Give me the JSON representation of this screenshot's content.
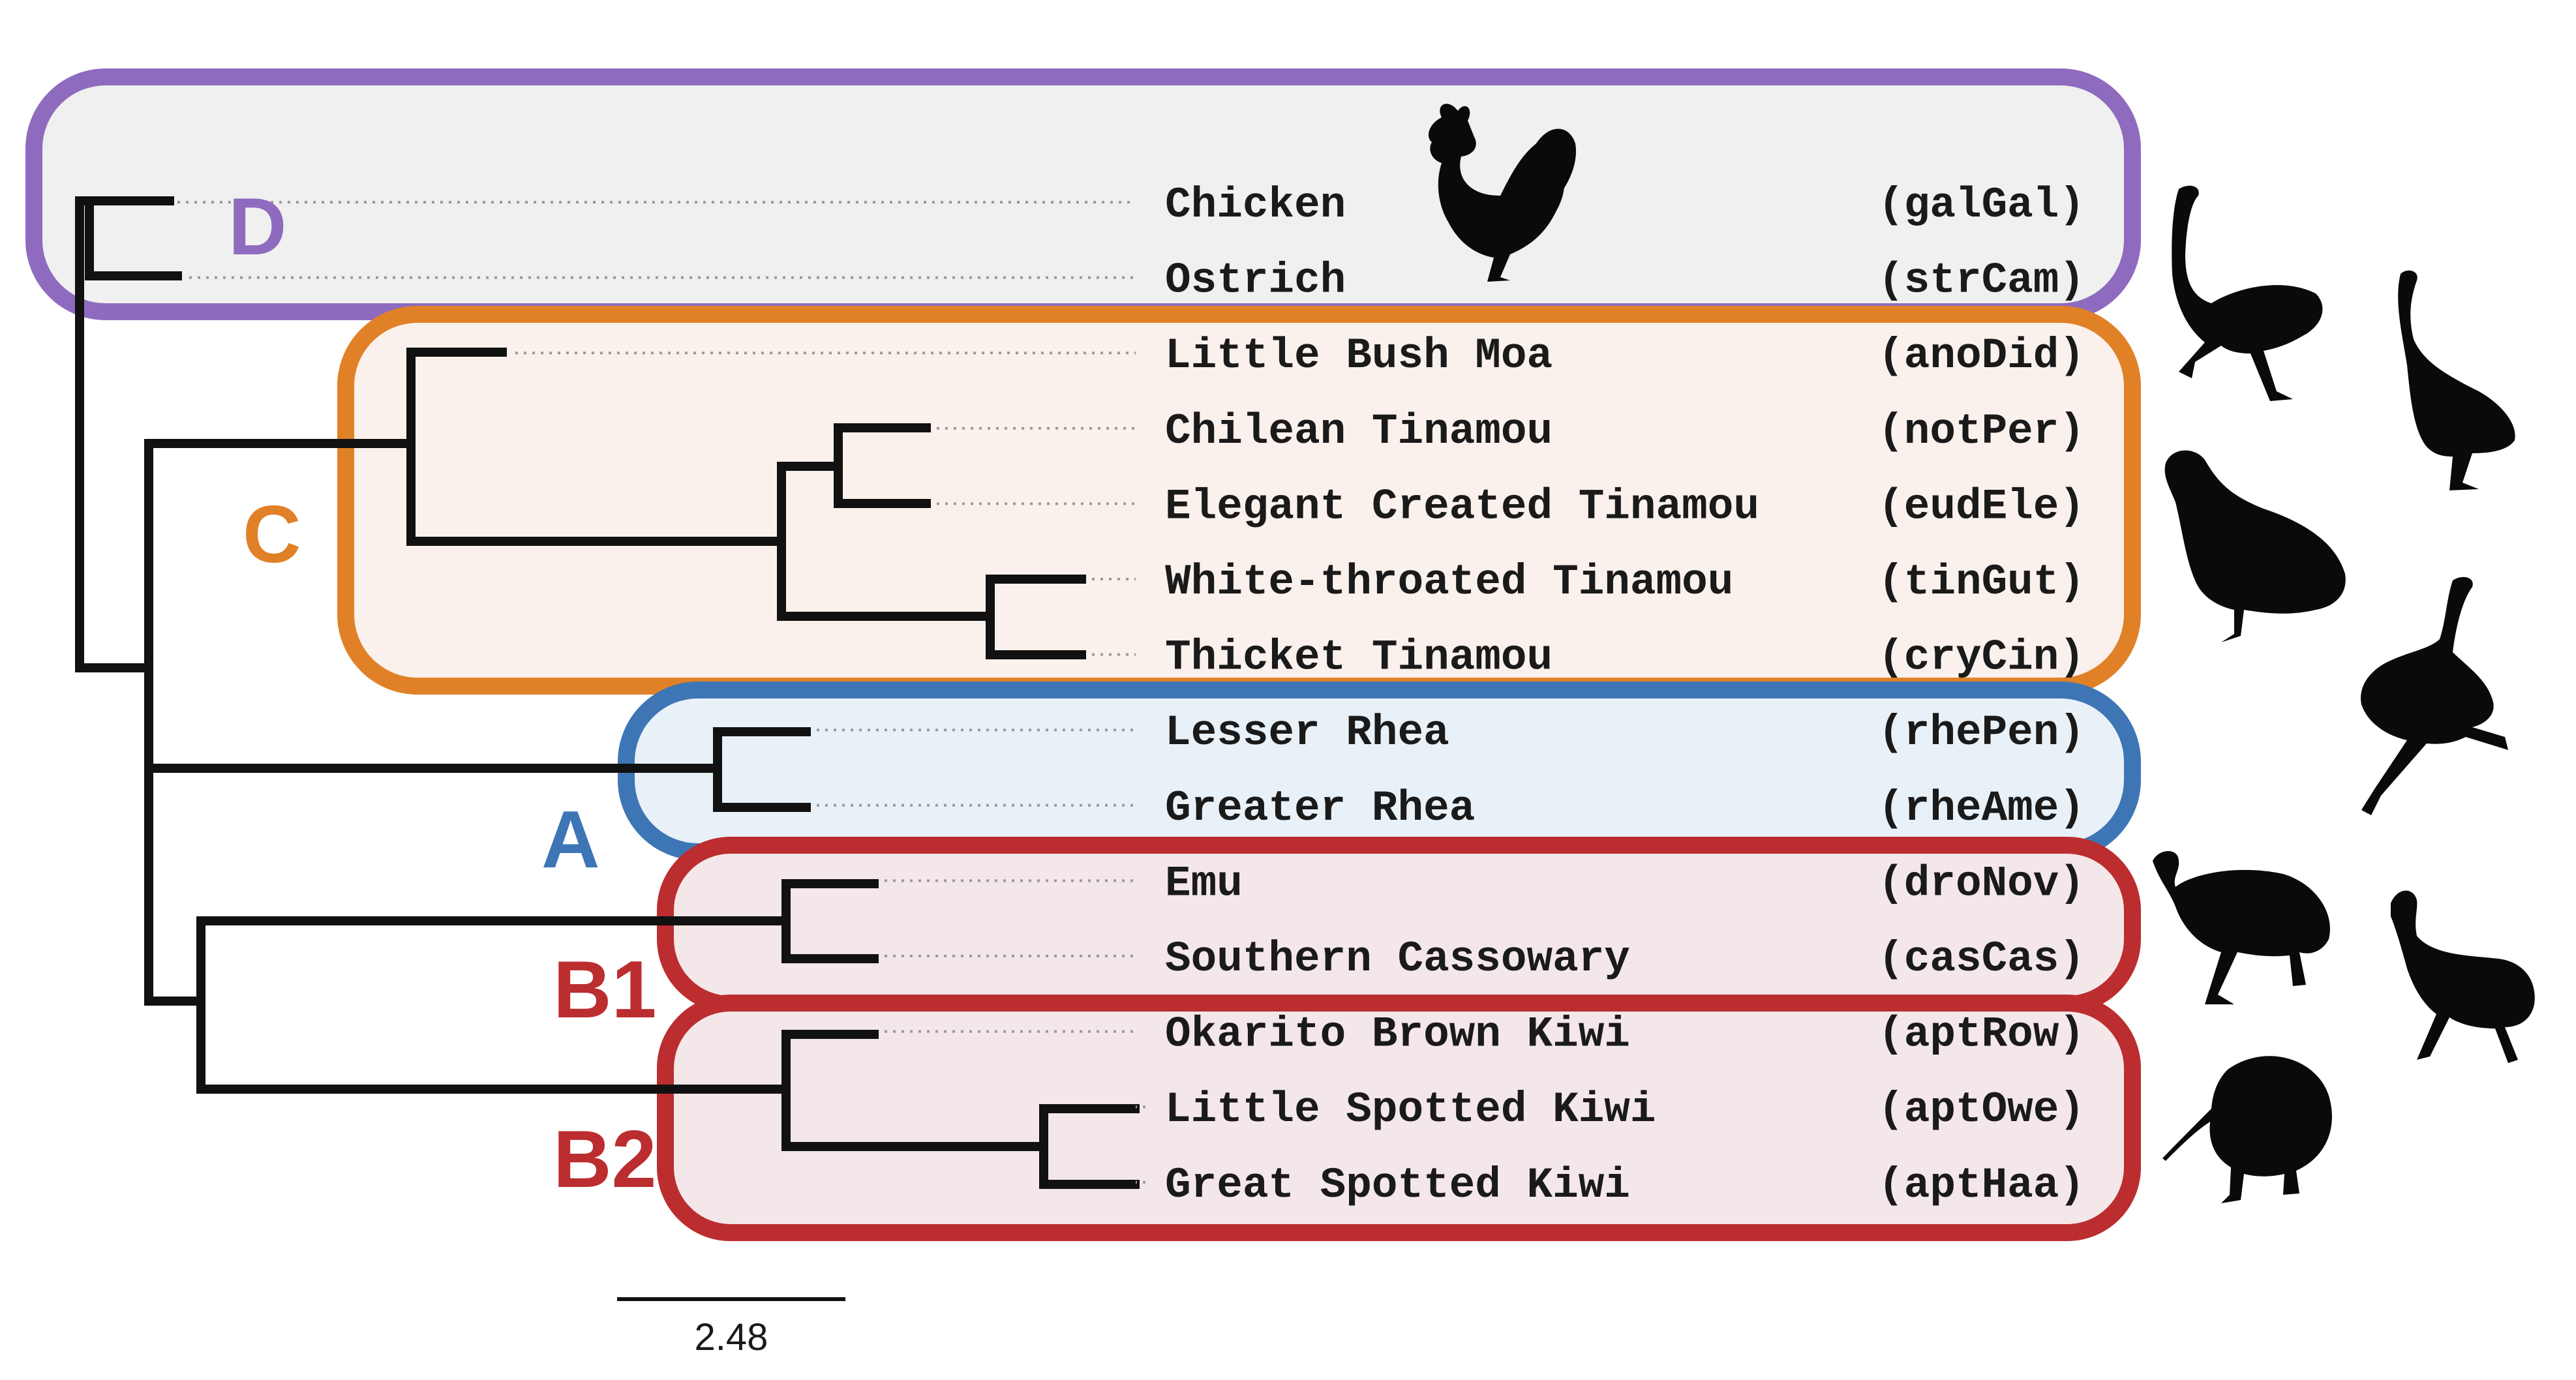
{
  "clades": [
    {
      "id": "D",
      "label": "D",
      "color": "#8e6bbf",
      "fill": "#f0f0f0"
    },
    {
      "id": "C",
      "label": "C",
      "color": "#e08128",
      "fill": "#faf1ec"
    },
    {
      "id": "A",
      "label": "A",
      "color": "#3e76b5",
      "fill": "#e9f1f8"
    },
    {
      "id": "B1",
      "label": "B1",
      "color": "#bb2d2f",
      "fill": "#f4e7e9"
    },
    {
      "id": "B2",
      "label": "B2",
      "color": "#bb2d2f",
      "fill": "#f4e7e9"
    }
  ],
  "taxa": [
    {
      "name": "Chicken",
      "code": "(galGal)"
    },
    {
      "name": "Ostrich",
      "code": "(strCam)"
    },
    {
      "name": "Little Bush Moa",
      "code": "(anoDid)"
    },
    {
      "name": "Chilean Tinamou",
      "code": "(notPer)"
    },
    {
      "name": "Elegant Created Tinamou",
      "code": "(eudEle)"
    },
    {
      "name": "White-throated Tinamou",
      "code": "(tinGut)"
    },
    {
      "name": "Thicket Tinamou",
      "code": "(cryCin)"
    },
    {
      "name": "Lesser Rhea",
      "code": "(rhePen)"
    },
    {
      "name": "Greater Rhea",
      "code": "(rheAme)"
    },
    {
      "name": "Emu",
      "code": "(droNov)"
    },
    {
      "name": "Southern Cassowary",
      "code": "(casCas)"
    },
    {
      "name": "Okarito Brown Kiwi",
      "code": "(aptRow)"
    },
    {
      "name": "Little Spotted Kiwi",
      "code": "(aptOwe)"
    },
    {
      "name": "Great Spotted Kiwi",
      "code": "(aptHaa)"
    }
  ],
  "scale_bar": {
    "label": "2.48"
  },
  "silhouettes": [
    {
      "id": "chicken-silhouette"
    },
    {
      "id": "ostrich-silhouette"
    },
    {
      "id": "moa-silhouette"
    },
    {
      "id": "tinamou-silhouette"
    },
    {
      "id": "rhea-silhouette"
    },
    {
      "id": "emu-silhouette"
    },
    {
      "id": "cassowary-silhouette"
    },
    {
      "id": "kiwi-silhouette"
    }
  ]
}
